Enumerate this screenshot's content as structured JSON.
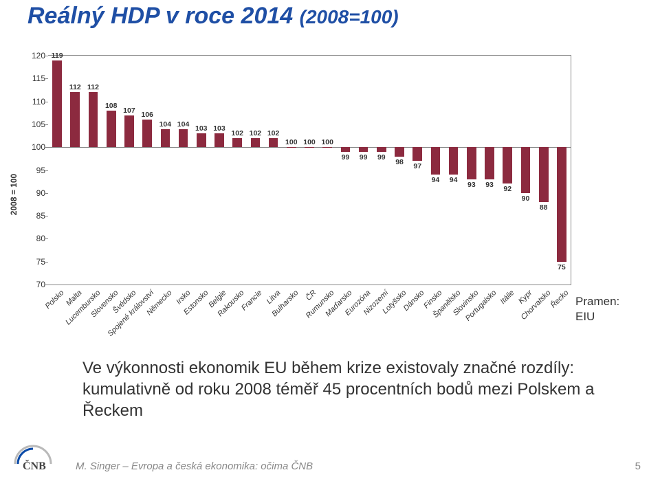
{
  "title_main": "Reálný HDP v roce 2014 ",
  "title_sub": "(2008=100)",
  "title_fontsize_main": 34,
  "title_fontsize_sub": 28,
  "y_axis_label": "2008 = 100",
  "chart": {
    "type": "bar",
    "ylim": [
      70,
      120
    ],
    "ytick_step": 5,
    "baseline": 100,
    "bar_color": "#8c2a3f",
    "axis_color": "#888888",
    "background_color": "#ffffff",
    "bar_width_ratio": 0.52,
    "label_fontsize": 11,
    "tick_fontsize": 12,
    "categories": [
      "Polsko",
      "Malta",
      "Lucembursko",
      "Slovensko",
      "Švédsko",
      "Spojené království",
      "Německo",
      "Irsko",
      "Estonsko",
      "Belgie",
      "Rakousko",
      "Francie",
      "Litva",
      "Bulharsko",
      "ČR",
      "Rumunsko",
      "Maďarsko",
      "Eurozóna",
      "Nizozemí",
      "Lotyšsko",
      "Dánsko",
      "Finsko",
      "Španělsko",
      "Slovinsko",
      "Portugalsko",
      "Itálie",
      "Kypr",
      "Chorvatsko",
      "Řecko"
    ],
    "values": [
      119,
      112,
      112,
      108,
      107,
      106,
      104,
      104,
      103,
      103,
      102,
      102,
      102,
      100,
      100,
      100,
      99,
      99,
      99,
      98,
      97,
      94,
      94,
      93,
      93,
      92,
      90,
      88,
      75
    ]
  },
  "source_label_1": "Pramen:",
  "source_label_2": "EIU",
  "summary_text": "Ve výkonnosti ekonomik EU během krize existovaly značné rozdíly: kumulativně od roku 2008 téměř 45 procentních bodů mezi Polskem a Řeckem",
  "footer_text": "M. Singer – Evropa a česká ekonomika: očima ČNB",
  "page_number": "5",
  "logo_text": "ČNB",
  "logo_accent_color": "#0a4aa8",
  "logo_gray": "#b9b9b9"
}
